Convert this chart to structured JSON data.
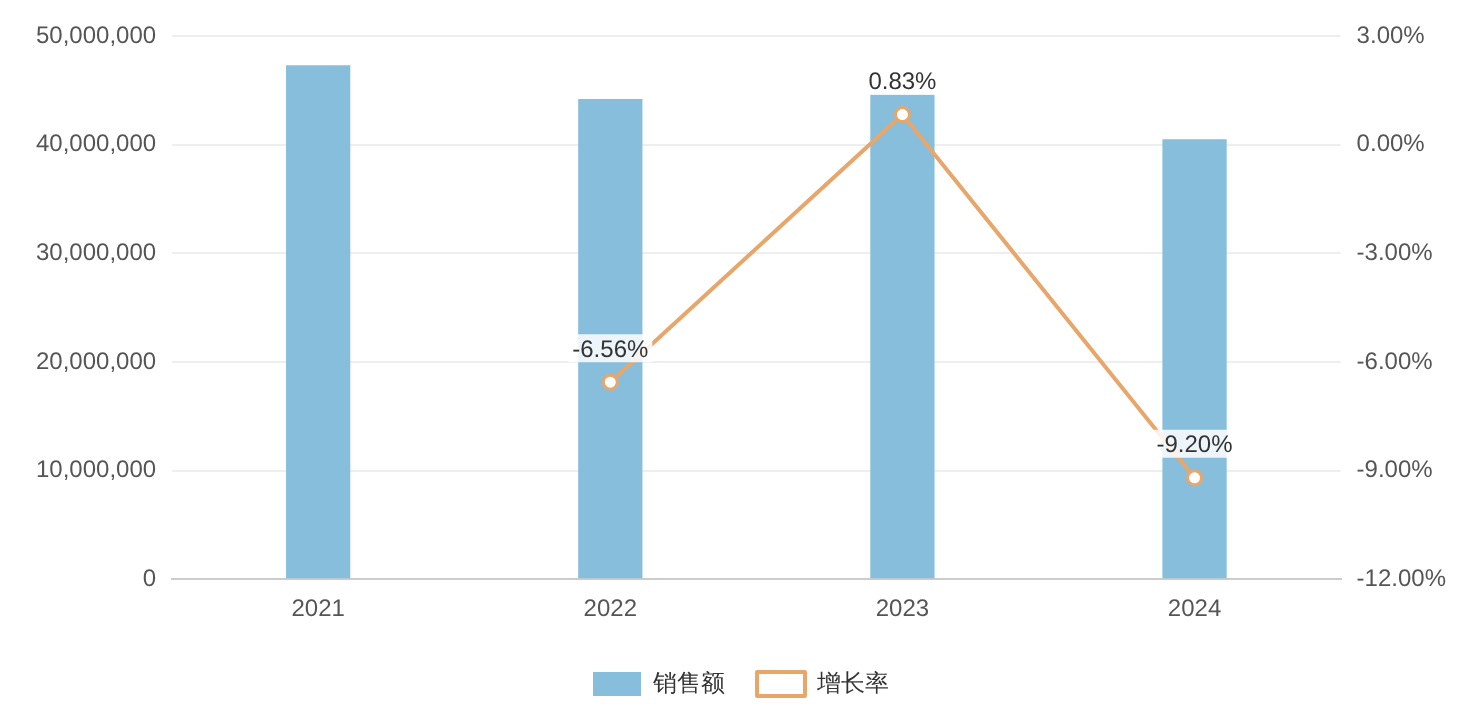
{
  "chart_data": {
    "type": "bar",
    "categories": [
      "2021",
      "2022",
      "2023",
      "2024"
    ],
    "series": [
      {
        "name": "销售额",
        "color": "#87bedc",
        "values": [
          47300000,
          44200000,
          44600000,
          40500000
        ]
      },
      {
        "name": "增长率",
        "type": "line",
        "axis": "y2",
        "color": "#e8a66a",
        "marker": "circle",
        "values": [
          null,
          -6.56,
          0.83,
          -9.2
        ],
        "value_labels": [
          null,
          "-6.56%",
          "0.83%",
          "-9.20%"
        ]
      }
    ],
    "ylim": [
      0,
      50000000
    ],
    "yticks": [
      {
        "value": 0,
        "label": "0"
      },
      {
        "value": 10000000,
        "label": "10,000,000"
      },
      {
        "value": 20000000,
        "label": "20,000,000"
      },
      {
        "value": 30000000,
        "label": "30,000,000"
      },
      {
        "value": 40000000,
        "label": "40,000,000"
      },
      {
        "value": 50000000,
        "label": "50,000,000"
      }
    ],
    "y2lim": [
      -12,
      3
    ],
    "y2ticks": [
      {
        "value": -12,
        "label": "-12.00%"
      },
      {
        "value": -9,
        "label": "-9.00%"
      },
      {
        "value": -6,
        "label": "-6.00%"
      },
      {
        "value": -3,
        "label": "-3.00%"
      },
      {
        "value": 0,
        "label": "0.00%"
      },
      {
        "value": 3,
        "label": "3.00%"
      }
    ],
    "grid": "y",
    "legend": "bottom"
  }
}
